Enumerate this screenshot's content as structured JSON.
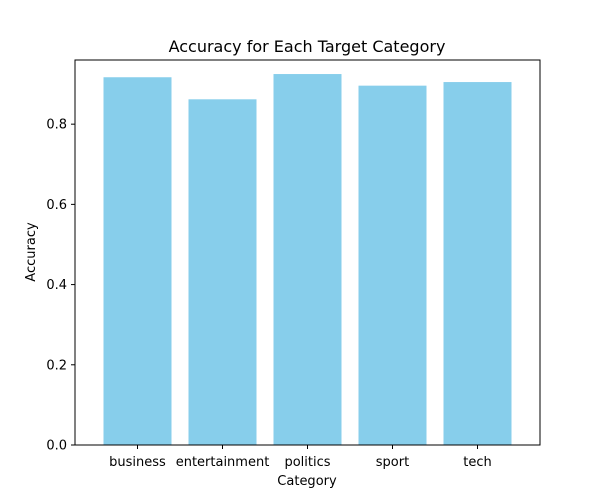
{
  "chart_data": {
    "type": "bar",
    "title": "Accuracy for Each Target Category",
    "xlabel": "Category",
    "ylabel": "Accuracy",
    "categories": [
      "business",
      "entertainment",
      "politics",
      "sport",
      "tech"
    ],
    "values": [
      0.917,
      0.862,
      0.925,
      0.896,
      0.905
    ],
    "ylim": [
      0,
      0.96
    ],
    "yticks": [
      0.0,
      0.2,
      0.4,
      0.6,
      0.8
    ],
    "ytick_labels": [
      "0.0",
      "0.2",
      "0.4",
      "0.6",
      "0.8"
    ],
    "grid": false,
    "legend": "none",
    "bar_color": "#87CEEB"
  }
}
